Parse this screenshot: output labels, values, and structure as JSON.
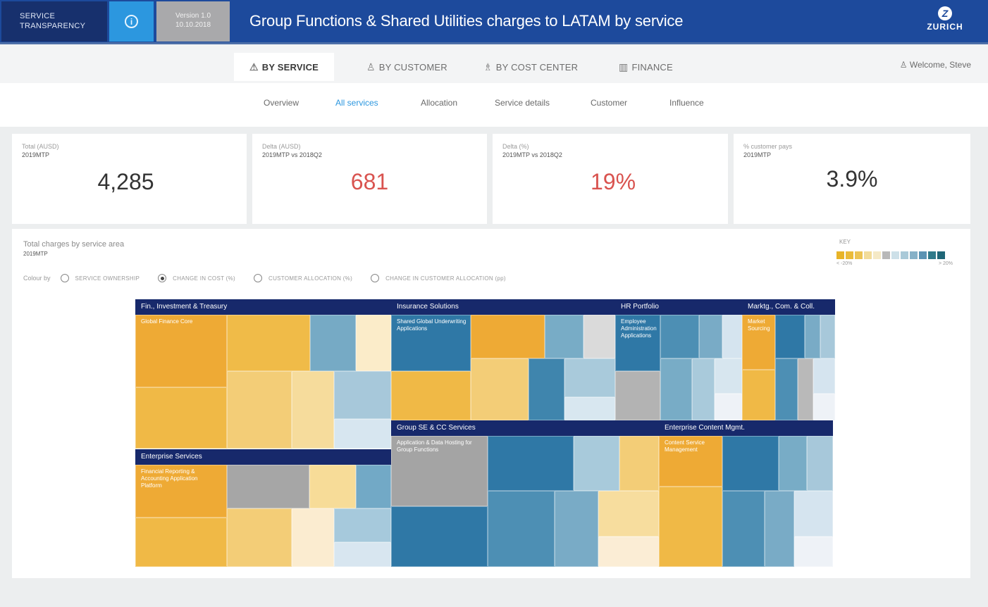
{
  "header": {
    "brand_line1": "SERVICE",
    "brand_line2": "TRANSPARENCY",
    "info_icon": "info-icon",
    "version_line1": "Version 1.0",
    "version_line2": "10.10.2018",
    "title": "Group Functions & Shared Utilities charges to LATAM by service",
    "logo_text": "ZURICH"
  },
  "tabs": [
    {
      "label": "BY SERVICE",
      "icon": "warning-triangle-icon",
      "glyph": "⚠"
    },
    {
      "label": "BY CUSTOMER",
      "icon": "person-icon",
      "glyph": "♙"
    },
    {
      "label": "BY COST CENTER",
      "icon": "org-chart-icon",
      "glyph": "♗"
    },
    {
      "label": "FINANCE",
      "icon": "building-icon",
      "glyph": "▥"
    }
  ],
  "welcome": "Welcome, Steve",
  "subnav": [
    "Overview",
    "All services",
    "Allocation",
    "Service details",
    "Customer",
    "Influence"
  ],
  "kpis": [
    {
      "label": "Total (AUSD)",
      "sub": "2019MTP",
      "value": "4,285"
    },
    {
      "label": "Delta (AUSD)",
      "sub": "2019MTP vs 2018Q2",
      "value": "681"
    },
    {
      "label": "Delta (%)",
      "sub": "2019MTP vs 2018Q2",
      "value": "19%"
    },
    {
      "label": "% customer pays",
      "sub": "2019MTP",
      "value": "3.9%"
    }
  ],
  "panel": {
    "title": "Total charges by service area",
    "subtitle": "2019MTP",
    "colour_by_label": "Colour by",
    "options": [
      {
        "label": "SERVICE OWNERSHIP",
        "selected": false
      },
      {
        "label": "CHANGE IN COST (%)",
        "selected": true
      },
      {
        "label": "CUSTOMER ALLOCATION (%)",
        "selected": false
      },
      {
        "label": "CHANGE IN CUSTOMER ALLOCATION (pp)",
        "selected": false
      }
    ],
    "legend": {
      "title": "KEY",
      "low_label": "< -20%",
      "high_label": "> 20%",
      "colors": [
        "#e8b428",
        "#eabb3a",
        "#ecc455",
        "#f2dc9a",
        "#f5e9c6",
        "#b8b8b8",
        "#cde0e8",
        "#a9c9d8",
        "#86b1c8",
        "#5b93b3",
        "#2f7a8a",
        "#1f6677"
      ]
    }
  },
  "treemap": {
    "groups": [
      {
        "name": "Fin., Investment & Treasury"
      },
      {
        "name": "Insurance Solutions"
      },
      {
        "name": "HR Portfolio"
      },
      {
        "name": "Marktg., Com. & Coll."
      },
      {
        "name": "Enterprise Services"
      },
      {
        "name": "Group SE & CC Services"
      },
      {
        "name": "Enterprise Content Mgmt."
      }
    ],
    "cell_labels": {
      "fit": "Global Finance Core",
      "ins": "Shared Global Underwriting Applications",
      "hr": "Employee Administration Applications",
      "mkt": "Market Sourcing",
      "ent": "Financial Reporting & Accounting Application Platform",
      "gse": "Application & Data Hosting for Group Functions",
      "ecm": "Content Service Management"
    }
  }
}
